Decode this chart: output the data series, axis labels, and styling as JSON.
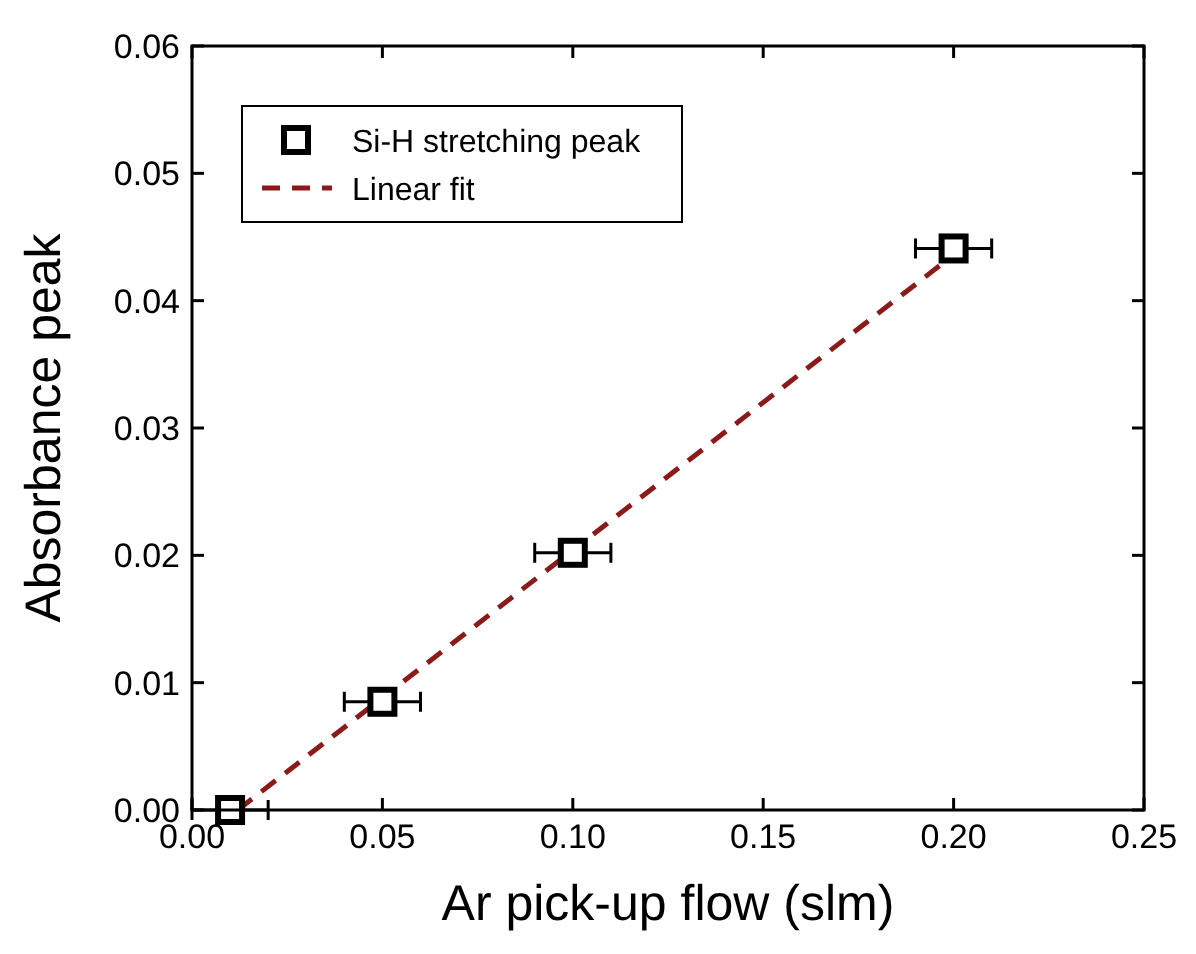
{
  "chart_data": {
    "type": "scatter",
    "xlabel": "Ar pick-up flow (slm)",
    "ylabel": "Absorbance peak",
    "xlim": [
      0,
      0.25
    ],
    "xticks": [
      "0.00",
      0.05,
      "0.10",
      0.15,
      "0.20",
      0.25
    ],
    "ylim": [
      0,
      0.06
    ],
    "yticks": [
      {
        "value": 0,
        "label": "0.00"
      },
      {
        "value": 0.01,
        "label": "0.01"
      },
      {
        "value": 0.02,
        "label": "0.02"
      },
      {
        "value": 0.03,
        "label": "0.03"
      },
      {
        "value": 0.04,
        "label": "0.04"
      },
      {
        "value": 0.05,
        "label": "0.05"
      },
      {
        "value": 0.06,
        "label": "0.06"
      }
    ],
    "legend": "top left",
    "grid": false,
    "series": [
      {
        "name": "Si-H stretching peak",
        "marker": "square",
        "color": "#000000",
        "x": [
          0.01,
          0.05,
          0.1,
          0.2
        ],
        "values": [
          0.0,
          0.0085,
          0.0202,
          0.0441
        ],
        "xerrors": [
          0.01,
          0.01,
          0.01,
          0.01
        ]
      },
      {
        "name": "Linear fit",
        "type": "line",
        "line_style": "dashed",
        "color": "#8b1a1a",
        "x": [
          0.012,
          0.2
        ],
        "values": [
          0.0,
          0.0436
        ]
      }
    ]
  }
}
